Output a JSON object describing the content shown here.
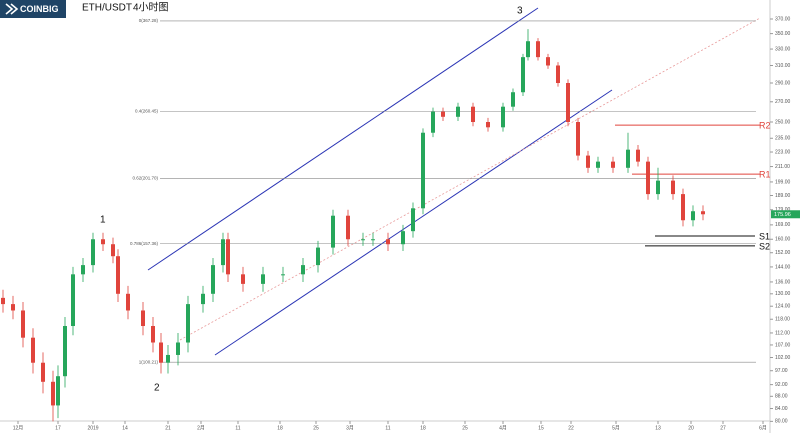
{
  "header": {
    "logo": "COINBIG",
    "pair": "ETH/USDT",
    "interval": "4小时图"
  },
  "chart_data": {
    "type": "candlestick",
    "log_scale": true,
    "up_color": "#26a65b",
    "down_color": "#e0443c",
    "x": [
      0,
      1,
      2,
      3,
      4,
      5,
      5.5,
      6.2,
      7,
      8,
      9,
      10,
      11,
      11.5,
      12.5,
      14,
      15,
      15.8,
      16.5,
      17.5,
      18.5,
      20,
      21,
      22,
      22.5,
      24,
      26,
      28,
      30,
      31.5,
      33,
      34.5,
      36,
      37,
      38.5,
      40,
      41,
      42,
      43,
      44,
      45.5,
      47,
      48.5,
      50,
      51,
      52,
      52.5,
      53.5,
      54.5,
      55.5,
      56.5,
      57.5,
      58.5,
      59.5,
      61,
      62.5,
      63.5,
      64.5,
      65.5,
      67,
      68,
      69,
      70
    ],
    "open": [
      128,
      125,
      122,
      110,
      100,
      93,
      85,
      95,
      115,
      140,
      145,
      160,
      157,
      150,
      130,
      122,
      115,
      108,
      100,
      103,
      108,
      125,
      130,
      145,
      160,
      140,
      135,
      140,
      140,
      145,
      155,
      175,
      160,
      160,
      160,
      157,
      165,
      180,
      240,
      260,
      255,
      265,
      250,
      245,
      265,
      280,
      320,
      340,
      320,
      310,
      290,
      250,
      220,
      210,
      215,
      210,
      225,
      215,
      190,
      200,
      190,
      172,
      178
    ],
    "high": [
      132,
      129,
      126,
      114,
      104,
      97,
      99,
      119,
      144,
      149,
      164,
      164,
      161,
      154,
      134,
      126,
      119,
      112,
      107,
      112,
      129,
      134,
      149,
      164,
      164,
      144,
      144,
      144,
      149,
      159,
      179,
      179,
      164,
      164,
      164,
      169,
      184,
      244,
      264,
      264,
      269,
      269,
      254,
      269,
      284,
      324,
      356,
      344,
      324,
      314,
      294,
      254,
      224,
      219,
      219,
      240,
      229,
      219,
      210,
      204,
      194,
      182,
      182
    ],
    "low": [
      121,
      118,
      106,
      96,
      89,
      80,
      81,
      91,
      111,
      136,
      141,
      153,
      146,
      126,
      118,
      111,
      104,
      96,
      96,
      99,
      104,
      121,
      126,
      141,
      136,
      131,
      131,
      136,
      136,
      141,
      151,
      156,
      156,
      156,
      153,
      153,
      161,
      176,
      236,
      251,
      251,
      246,
      241,
      241,
      261,
      276,
      316,
      316,
      306,
      286,
      246,
      216,
      206,
      206,
      206,
      206,
      211,
      186,
      186,
      186,
      168,
      168,
      172
    ],
    "close": [
      125,
      122,
      110,
      100,
      93,
      85,
      95,
      115,
      140,
      145,
      160,
      157,
      150,
      130,
      122,
      115,
      108,
      100,
      103,
      108,
      125,
      130,
      145,
      160,
      140,
      135,
      140,
      140,
      145,
      155,
      175,
      160,
      160,
      160,
      157,
      165,
      180,
      240,
      260,
      255,
      265,
      250,
      245,
      265,
      280,
      320,
      340,
      320,
      310,
      290,
      250,
      220,
      210,
      215,
      210,
      225,
      215,
      190,
      200,
      190,
      172,
      178,
      175.96
    ],
    "xlim": [
      0,
      77
    ],
    "ylim": [
      78,
      380
    ],
    "xticks": [
      {
        "value": 1.5,
        "label": "12月"
      },
      {
        "value": 5.5,
        "label": "17"
      },
      {
        "value": 9,
        "label": "2019"
      },
      {
        "value": 12.2,
        "label": "14"
      },
      {
        "value": 16.5,
        "label": "21"
      },
      {
        "value": 19.8,
        "label": "2月"
      },
      {
        "value": 23.5,
        "label": "11"
      },
      {
        "value": 27.7,
        "label": "18"
      },
      {
        "value": 31.3,
        "label": "25"
      },
      {
        "value": 34.7,
        "label": "3月"
      },
      {
        "value": 38.5,
        "label": "11"
      },
      {
        "value": 42,
        "label": "18"
      },
      {
        "value": 46.2,
        "label": "25"
      },
      {
        "value": 50,
        "label": "4月"
      },
      {
        "value": 53.8,
        "label": "15"
      },
      {
        "value": 56.8,
        "label": "22"
      },
      {
        "value": 61.3,
        "label": "5月"
      },
      {
        "value": 65.5,
        "label": "13"
      },
      {
        "value": 68.8,
        "label": "20"
      },
      {
        "value": 72,
        "label": "27"
      },
      {
        "value": 76,
        "label": "6月"
      }
    ],
    "yticks": [
      {
        "value": 370,
        "label": "370.00"
      },
      {
        "value": 350,
        "label": "350.00"
      },
      {
        "value": 330,
        "label": "330.00"
      },
      {
        "value": 310,
        "label": "310.00"
      },
      {
        "value": 290,
        "label": "290.00"
      },
      {
        "value": 270,
        "label": "270.00"
      },
      {
        "value": 250,
        "label": "250.00"
      },
      {
        "value": 235,
        "label": "235.00"
      },
      {
        "value": 223,
        "label": "223.00"
      },
      {
        "value": 211,
        "label": "211.00"
      },
      {
        "value": 199,
        "label": "199.00"
      },
      {
        "value": 189,
        "label": "189.00"
      },
      {
        "value": 179,
        "label": "179.00"
      },
      {
        "value": 169,
        "label": "169.00"
      },
      {
        "value": 160,
        "label": "160.00"
      },
      {
        "value": 152,
        "label": "152.00"
      },
      {
        "value": 144,
        "label": "144.00"
      },
      {
        "value": 136,
        "label": "136.00"
      },
      {
        "value": 130,
        "label": "130.00"
      },
      {
        "value": 124,
        "label": "124.00"
      },
      {
        "value": 118,
        "label": "118.00"
      },
      {
        "value": 112,
        "label": "112.00"
      },
      {
        "value": 107,
        "label": "107.00"
      },
      {
        "value": 102,
        "label": "102.00"
      },
      {
        "value": 97,
        "label": "97.00"
      },
      {
        "value": 92,
        "label": "92.00"
      },
      {
        "value": 88,
        "label": "88.00"
      },
      {
        "value": 84,
        "label": "84.00"
      },
      {
        "value": 80,
        "label": "80.00"
      }
    ],
    "fib_levels": [
      {
        "label": "0(367.28)",
        "value": 367.28
      },
      {
        "label": "0.4(260.45)",
        "value": 260.45
      },
      {
        "label": "0.62(201.70)",
        "value": 201.7
      },
      {
        "label": "0.786(157.36)",
        "value": 157.36
      },
      {
        "label": "1(100.21)",
        "value": 100.21
      }
    ],
    "levels": [
      {
        "name": "R2",
        "value": 247,
        "color": "#e0443c"
      },
      {
        "name": "R1",
        "value": 205,
        "color": "#e0443c"
      },
      {
        "name": "S1",
        "value": 162,
        "color": "#111111"
      },
      {
        "name": "S2",
        "value": 156,
        "color": "#111111"
      }
    ],
    "annotations": [
      "1",
      "2",
      "3"
    ]
  }
}
